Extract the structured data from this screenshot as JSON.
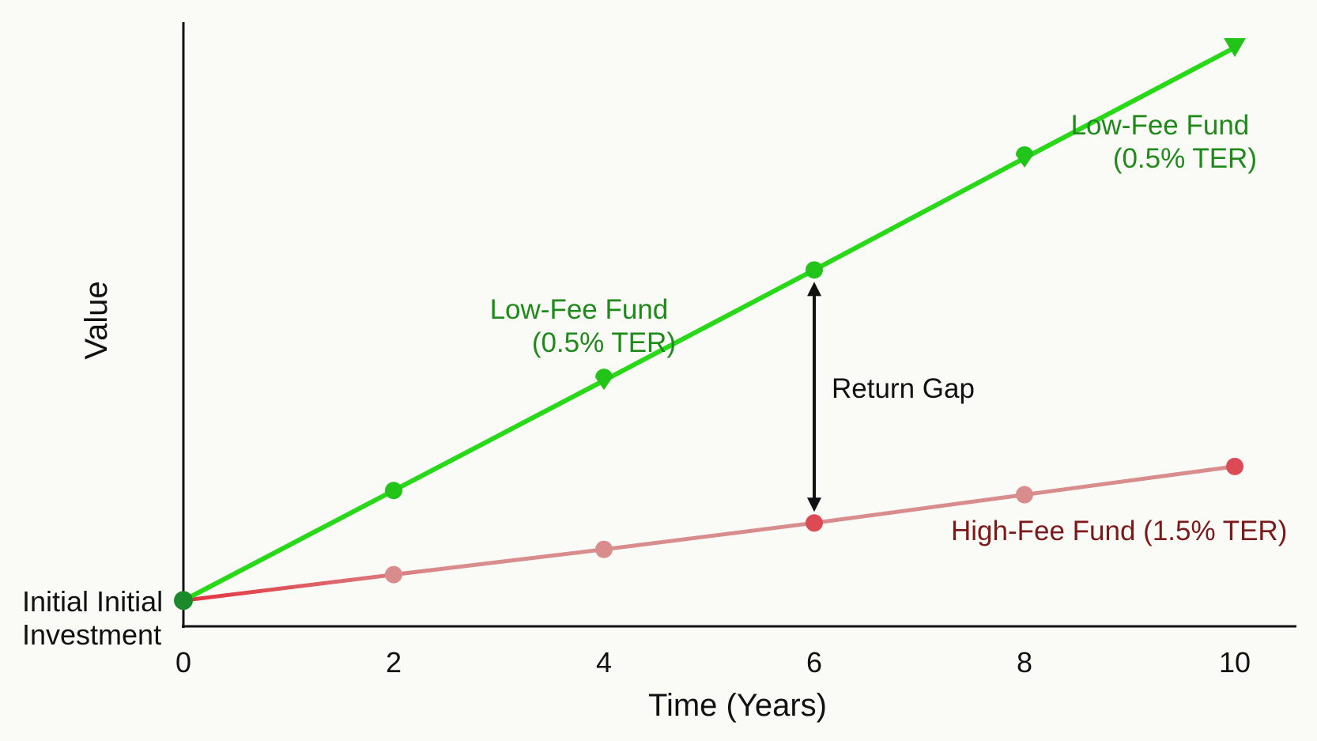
{
  "chart_data": {
    "type": "line",
    "title": "",
    "xlabel": "Time (Years)",
    "ylabel": "Value",
    "xlim": [
      0,
      10
    ],
    "ylim": [
      0,
      100
    ],
    "x_ticks": [
      0,
      2,
      4,
      6,
      8,
      10
    ],
    "y_origin_label": [
      "Initial Initial",
      "Investment"
    ],
    "grid": false,
    "series": [
      {
        "name": "Low-Fee Fund (0.5% TER)",
        "color": "#2ad81a",
        "x": [
          0,
          2,
          4,
          6,
          8,
          10
        ],
        "y": [
          4.3,
          22.6,
          40.9,
          59.3,
          77.9,
          96.3
        ]
      },
      {
        "name": "High-Fee Fund (1.5% TER)",
        "color": "#d98c8c",
        "x": [
          0,
          2,
          4,
          6,
          8,
          10
        ],
        "y": [
          4.3,
          8.6,
          12.8,
          17.2,
          21.9,
          26.6
        ]
      }
    ],
    "annotations": {
      "low_fee_end": [
        "Low-Fee Fund",
        "(0.5% TER)"
      ],
      "low_fee_mid": [
        "Low-Fee Fund",
        "(0.5% TER)"
      ],
      "high_fee": "High-Fee Fund (1.5% TER)",
      "gap": {
        "label": "Return Gap",
        "x": 6
      }
    },
    "colors": {
      "low_fee_label": "#1f8a1a",
      "high_fee_label": "#7a1a1a",
      "high_fee_marker": "#dc4a55",
      "origin_marker": "#1a8a2a",
      "axis": "#111111"
    }
  }
}
